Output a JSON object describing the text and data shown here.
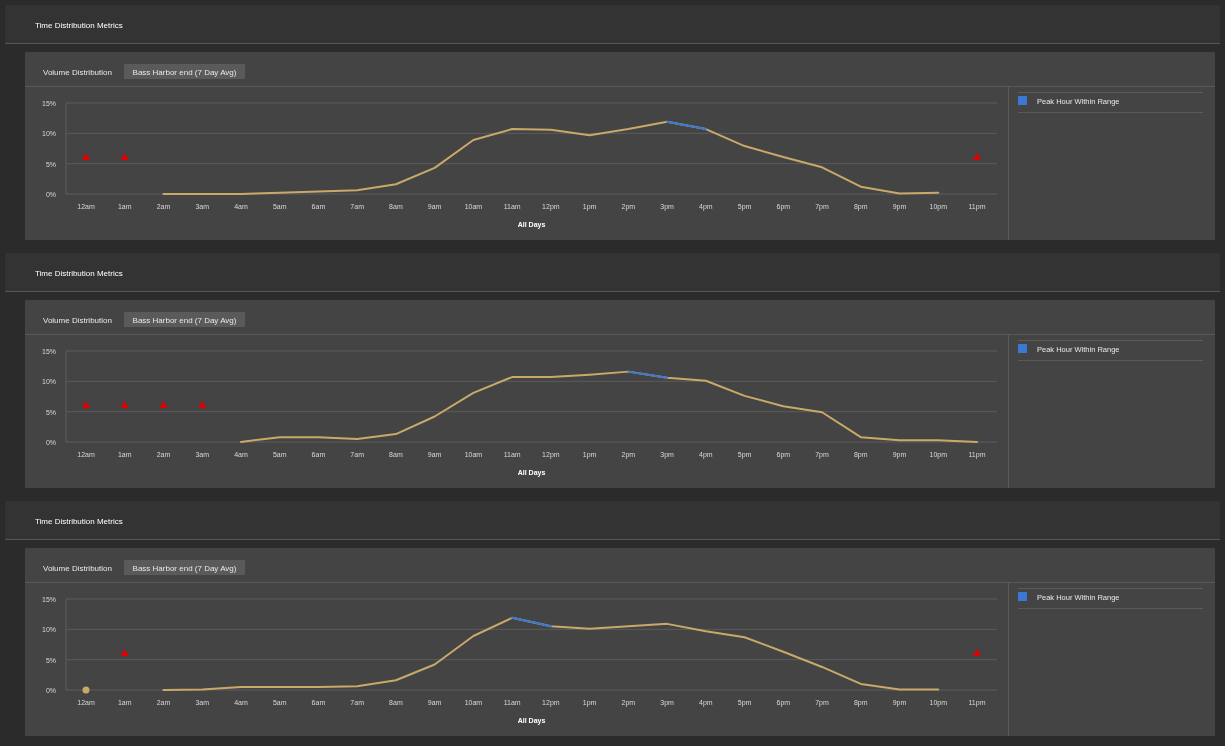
{
  "chart_data": [
    {
      "type": "line",
      "title": "Time Distribution Metrics",
      "subtitle": "Volume Distribution",
      "annotations": [
        "Bass Harbor end (7 Day Avg)"
      ],
      "xlabel": "All Days",
      "categories": [
        "12am",
        "1am",
        "2am",
        "3am",
        "4am",
        "5am",
        "6am",
        "7am",
        "8am",
        "9am",
        "10am",
        "11am",
        "12pm",
        "1pm",
        "2pm",
        "3pm",
        "4pm",
        "5pm",
        "6pm",
        "7pm",
        "8pm",
        "9pm",
        "10pm",
        "11pm"
      ],
      "ylim": [
        0,
        15
      ],
      "yticks": [
        {
          "value": 0,
          "label": "0%"
        },
        {
          "value": 5,
          "label": "5%"
        },
        {
          "value": 10,
          "label": "10%"
        },
        {
          "value": 15,
          "label": "15%"
        }
      ],
      "grid": "y",
      "legend": "right",
      "marker": "none",
      "series": [
        {
          "color": "#c8a96a",
          "values": [
            null,
            null,
            0,
            0,
            0,
            0.2,
            0.4,
            0.6,
            1.6,
            4.3,
            8.9,
            10.7,
            10.6,
            9.7,
            10.7,
            11.9,
            10.7,
            7.9,
            6.1,
            4.4,
            1.2,
            0.1,
            0.2,
            null
          ]
        },
        {
          "name": "Peak Hour Within Range",
          "color": "#3a78d4",
          "values": [
            null,
            null,
            null,
            null,
            null,
            null,
            null,
            null,
            null,
            null,
            null,
            null,
            null,
            null,
            null,
            11.9,
            10.7,
            null,
            null,
            null,
            null,
            null,
            null,
            null
          ]
        },
        {
          "type": "scatter",
          "marker": "triangle",
          "color": "#e00000",
          "values": [
            6,
            6,
            null,
            null,
            null,
            null,
            null,
            null,
            null,
            null,
            null,
            null,
            null,
            null,
            null,
            null,
            null,
            null,
            null,
            null,
            null,
            null,
            null,
            6
          ]
        }
      ]
    },
    {
      "type": "line",
      "title": "Time Distribution Metrics",
      "subtitle": "Volume Distribution",
      "annotations": [
        "Bass Harbor end (7 Day Avg)"
      ],
      "xlabel": "All Days",
      "categories": [
        "12am",
        "1am",
        "2am",
        "3am",
        "4am",
        "5am",
        "6am",
        "7am",
        "8am",
        "9am",
        "10am",
        "11am",
        "12pm",
        "1pm",
        "2pm",
        "3pm",
        "4pm",
        "5pm",
        "6pm",
        "7pm",
        "8pm",
        "9pm",
        "10pm",
        "11pm"
      ],
      "ylim": [
        0,
        15
      ],
      "yticks": [
        {
          "value": 0,
          "label": "0%"
        },
        {
          "value": 5,
          "label": "5%"
        },
        {
          "value": 10,
          "label": "10%"
        },
        {
          "value": 15,
          "label": "15%"
        }
      ],
      "grid": "y",
      "legend": "right",
      "marker": "none",
      "series": [
        {
          "color": "#c8a96a",
          "values": [
            null,
            null,
            null,
            null,
            0,
            0.8,
            0.8,
            0.5,
            1.3,
            4.2,
            8.1,
            10.7,
            10.7,
            11.1,
            11.6,
            10.6,
            10.1,
            7.6,
            5.9,
            4.9,
            0.8,
            0.3,
            0.3,
            0
          ]
        },
        {
          "name": "Peak Hour Within Range",
          "color": "#3a78d4",
          "values": [
            null,
            null,
            null,
            null,
            null,
            null,
            null,
            null,
            null,
            null,
            null,
            null,
            null,
            null,
            11.6,
            10.6,
            null,
            null,
            null,
            null,
            null,
            null,
            null,
            null
          ]
        },
        {
          "type": "scatter",
          "marker": "triangle",
          "color": "#e00000",
          "values": [
            6,
            6,
            6,
            6,
            null,
            null,
            null,
            null,
            null,
            null,
            null,
            null,
            null,
            null,
            null,
            null,
            null,
            null,
            null,
            null,
            null,
            null,
            null,
            null
          ]
        }
      ]
    },
    {
      "type": "line",
      "title": "Time Distribution Metrics",
      "subtitle": "Volume Distribution",
      "annotations": [
        "Bass Harbor end (7 Day Avg)"
      ],
      "xlabel": "All Days",
      "categories": [
        "12am",
        "1am",
        "2am",
        "3am",
        "4am",
        "5am",
        "6am",
        "7am",
        "8am",
        "9am",
        "10am",
        "11am",
        "12pm",
        "1pm",
        "2pm",
        "3pm",
        "4pm",
        "5pm",
        "6pm",
        "7pm",
        "8pm",
        "9pm",
        "10pm",
        "11pm"
      ],
      "ylim": [
        0,
        15
      ],
      "yticks": [
        {
          "value": 0,
          "label": "0%"
        },
        {
          "value": 5,
          "label": "5%"
        },
        {
          "value": 10,
          "label": "10%"
        },
        {
          "value": 15,
          "label": "15%"
        }
      ],
      "grid": "y",
      "legend": "right",
      "marker": "none",
      "series": [
        {
          "color": "#c8a96a",
          "values": [
            0,
            null,
            0,
            0.1,
            0.5,
            0.5,
            0.5,
            0.6,
            1.6,
            4.2,
            8.9,
            11.9,
            10.5,
            10.1,
            10.5,
            10.9,
            9.7,
            8.7,
            6.3,
            3.8,
            1.0,
            0.1,
            0.1,
            null
          ]
        },
        {
          "name": "Peak Hour Within Range",
          "color": "#3a78d4",
          "values": [
            null,
            null,
            null,
            null,
            null,
            null,
            null,
            null,
            null,
            null,
            null,
            11.9,
            10.5,
            null,
            null,
            null,
            null,
            null,
            null,
            null,
            null,
            null,
            null,
            null
          ]
        },
        {
          "type": "scatter",
          "marker": "triangle",
          "color": "#e00000",
          "values": [
            null,
            6,
            null,
            null,
            null,
            null,
            null,
            null,
            null,
            null,
            null,
            null,
            null,
            null,
            null,
            null,
            null,
            null,
            null,
            null,
            null,
            null,
            null,
            6
          ]
        }
      ]
    }
  ]
}
